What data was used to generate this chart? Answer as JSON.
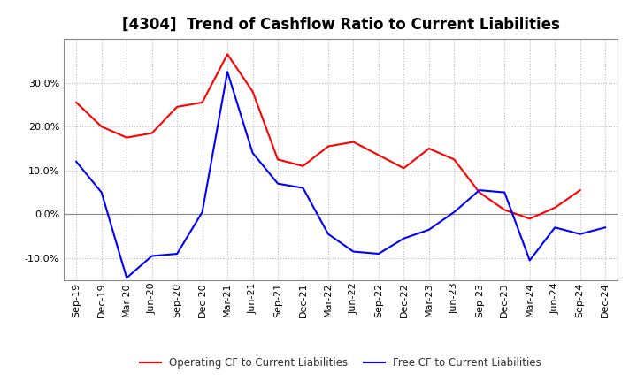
{
  "title": "[4304]  Trend of Cashflow Ratio to Current Liabilities",
  "x_labels": [
    "Sep-19",
    "Dec-19",
    "Mar-20",
    "Jun-20",
    "Sep-20",
    "Dec-20",
    "Mar-21",
    "Jun-21",
    "Sep-21",
    "Dec-21",
    "Mar-22",
    "Jun-22",
    "Sep-22",
    "Dec-22",
    "Mar-23",
    "Jun-23",
    "Sep-23",
    "Dec-23",
    "Mar-24",
    "Jun-24",
    "Sep-24",
    "Dec-24"
  ],
  "operating_cf": [
    25.5,
    20.0,
    17.5,
    18.5,
    24.5,
    25.5,
    36.5,
    28.0,
    12.5,
    11.0,
    15.5,
    16.5,
    13.5,
    10.5,
    15.0,
    12.5,
    5.0,
    1.0,
    -1.0,
    1.5,
    5.5,
    null
  ],
  "free_cf": [
    12.0,
    5.0,
    -14.5,
    -9.5,
    -9.0,
    0.5,
    32.5,
    14.0,
    7.0,
    6.0,
    -4.5,
    -8.5,
    -9.0,
    -5.5,
    -3.5,
    0.5,
    5.5,
    5.0,
    -10.5,
    -3.0,
    -4.5,
    -3.0
  ],
  "operating_color": "#ff0000",
  "free_color": "#0000ff",
  "ylim": [
    -15,
    40
  ],
  "yticks": [
    -10.0,
    0.0,
    10.0,
    20.0,
    30.0
  ],
  "background_color": "#ffffff",
  "grid_color": "#bbbbbb",
  "title_fontsize": 12,
  "tick_fontsize": 8,
  "legend_labels": [
    "Operating CF to Current Liabilities",
    "Free CF to Current Liabilities"
  ],
  "legend_fontsize": 8.5
}
